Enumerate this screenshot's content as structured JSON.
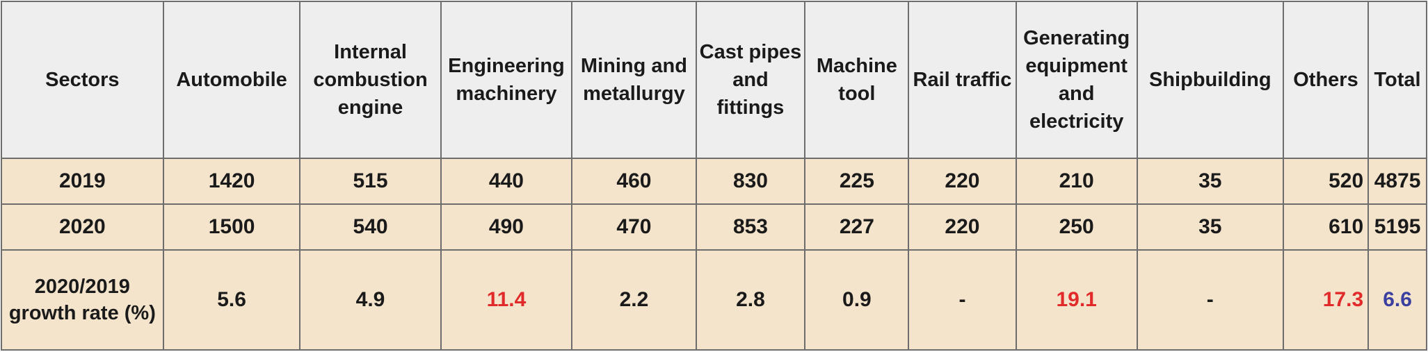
{
  "table": {
    "headers": [
      "Sectors",
      "Automobile",
      "Internal combustion engine",
      "Engineering machinery",
      "Mining and metallurgy",
      "Cast pipes and fittings",
      "Machine tool",
      "Rail traffic",
      "Generating equipment and electricity",
      "Shipbuilding",
      "Others",
      "Total"
    ],
    "rows": [
      {
        "label": "2019",
        "cells": [
          "1420",
          "515",
          "440",
          "460",
          "830",
          "225",
          "220",
          "210",
          "35",
          "520",
          "4875"
        ]
      },
      {
        "label": "2020",
        "cells": [
          "1500",
          "540",
          "490",
          "470",
          "853",
          "227",
          "220",
          "250",
          "35",
          "610",
          "5195"
        ]
      },
      {
        "label": "2020/2019 growth rate (%)",
        "cells": [
          "5.6",
          "4.9",
          "11.4",
          "2.2",
          "2.8",
          "0.9",
          "-",
          "19.1",
          "-",
          "17.3",
          "6.6"
        ]
      }
    ],
    "colors": {
      "header_bg": "#eeeeee",
      "body_bg": "#f4e4cc",
      "highlight_red": "#e12a2a",
      "highlight_blue": "#3b3fa0",
      "border": "#6d6d6d"
    }
  }
}
